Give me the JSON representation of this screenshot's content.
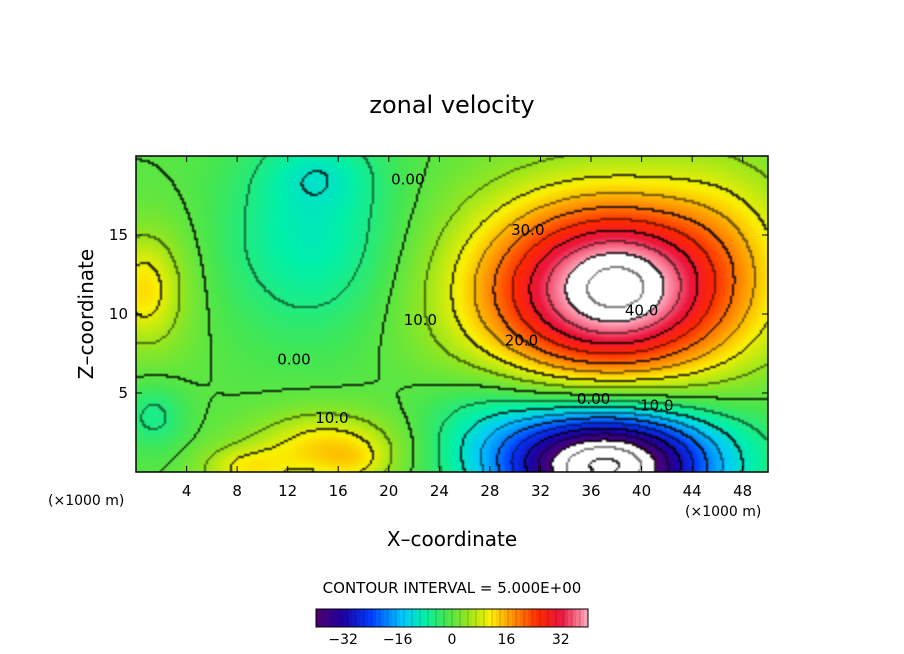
{
  "chart_data": {
    "type": "heatmap",
    "title": "zonal velocity",
    "xlabel": "X–coordinate",
    "ylabel": "Z–coordinate",
    "x_unit": "(×1000 m)",
    "x_unit_right": "(×1000 m)",
    "xlim": [
      0,
      50
    ],
    "ylim": [
      0,
      20
    ],
    "x_ticks": [
      4,
      8,
      12,
      16,
      20,
      24,
      28,
      32,
      36,
      40,
      44,
      48
    ],
    "y_ticks": [
      5,
      10,
      15
    ],
    "contour_interval_text": "CONTOUR INTERVAL = 5.000E+00",
    "colorbar": {
      "min": -40,
      "max": 40,
      "ticks": [
        -32,
        -16,
        0,
        16,
        32
      ]
    },
    "contour_labels": [
      {
        "text": "0.00",
        "x": 21.5,
        "y": 18.2
      },
      {
        "text": "30.0",
        "x": 31.0,
        "y": 15.0
      },
      {
        "text": "10.0",
        "x": 22.5,
        "y": 9.3
      },
      {
        "text": "20.0",
        "x": 30.5,
        "y": 8.0
      },
      {
        "text": "40.0",
        "x": 40.0,
        "y": 9.9
      },
      {
        "text": "0.00",
        "x": 12.5,
        "y": 6.8
      },
      {
        "text": "0.00",
        "x": 36.2,
        "y": 4.3
      },
      {
        "text": "10.0",
        "x": 41.2,
        "y": 3.9
      },
      {
        "text": "10.0",
        "x": 15.5,
        "y": 3.1
      }
    ],
    "field_features": [
      {
        "kind": "jet_max",
        "x": 37.5,
        "z": 11.5,
        "value": 42,
        "sx": 7.5,
        "sz": 4.2
      },
      {
        "kind": "jet_max_core",
        "x": 38.5,
        "z": 11.8,
        "value": 6,
        "sx": 3.2,
        "sz": 2.0
      },
      {
        "kind": "surface_min",
        "x": 37.0,
        "z": 0.3,
        "value": -45,
        "sx": 5.5,
        "sz": 2.4
      },
      {
        "kind": "surface_min_wide",
        "x": 40.0,
        "z": 1.5,
        "value": -8,
        "sx": 8.0,
        "sz": 3.0
      },
      {
        "kind": "weak_min",
        "x": 14.0,
        "z": 15.0,
        "value": -9,
        "sx": 5.0,
        "sz": 4.5
      },
      {
        "kind": "weak_min_top",
        "x": 14.5,
        "z": 19.0,
        "value": -4,
        "sx": 3.0,
        "sz": 1.5
      },
      {
        "kind": "left_edge_max",
        "x": 0.5,
        "z": 11.5,
        "value": 12,
        "sx": 2.0,
        "sz": 2.5
      },
      {
        "kind": "surface_max",
        "x": 15.0,
        "z": 1.5,
        "value": 13,
        "sx": 4.0,
        "sz": 1.6
      },
      {
        "kind": "surface_max_left",
        "x": 8.5,
        "z": 0.2,
        "value": 9,
        "sx": 2.5,
        "sz": 1.0
      },
      {
        "kind": "surface_max_right",
        "x": 17.5,
        "z": 0.5,
        "value": 4,
        "sx": 2.0,
        "sz": 1.0
      },
      {
        "kind": "lower_left_min",
        "x": 1.5,
        "z": 3.5,
        "value": -6,
        "sx": 1.8,
        "sz": 1.5
      },
      {
        "kind": "mid_min",
        "x": 28.0,
        "z": 3.0,
        "value": -6,
        "sx": 4.0,
        "sz": 2.5
      },
      {
        "kind": "right_upper_max",
        "x": 47.0,
        "z": 16.0,
        "value": 4,
        "sx": 4.0,
        "sz": 4.0
      },
      {
        "kind": "left_bump",
        "x": 3.5,
        "z": 11.5,
        "value": 2,
        "sx": 2.0,
        "sz": 4.0
      }
    ]
  }
}
